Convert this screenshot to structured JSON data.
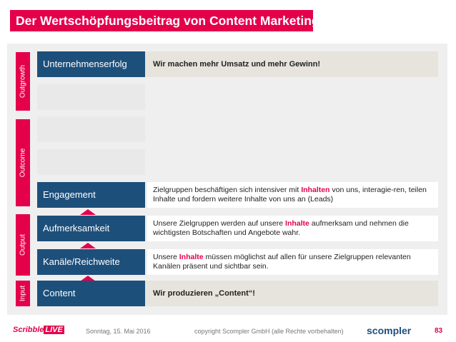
{
  "title": "Der Wertschöpfungsbeitrag von Content Marketing",
  "sections": {
    "outgrowth": "Outgrowth",
    "outcome": "Outcome",
    "output": "Output",
    "input": "Input"
  },
  "rows": {
    "unternehmenserfolg": {
      "label": "Unternehmenserfolg",
      "desc": "Wir machen mehr Umsatz und mehr Gewinn!"
    },
    "engagement": {
      "label": "Engagement",
      "desc_a": "Zielgruppen beschäftigen sich intensiver mit ",
      "desc_hl": "Inhalten",
      "desc_b": " von uns, interagie-ren, teilen Inhalte und fordern weitere Inhalte von uns an (Leads)"
    },
    "aufmerksamkeit": {
      "label": "Aufmerksamkeit",
      "desc_a": "Unsere Zielgruppen werden auf unsere ",
      "desc_hl": "Inhalte",
      "desc_b": " aufmerksam und nehmen die wichtigsten Botschaften und Angebote wahr."
    },
    "kanaele": {
      "label": "Kanäle/Reichweite",
      "desc_a": "Unsere ",
      "desc_hl": "Inhalte",
      "desc_b": " müssen möglichst auf allen für unsere Zielgruppen relevanten Kanälen präsent und sichtbar sein."
    },
    "content": {
      "label": "Content",
      "desc": "Wir produzieren „Content“!"
    }
  },
  "footer": {
    "date": "Sonntag, 15. Mai 2016",
    "copyright": "copyright Scompler GmbH (alle Rechte vorbehalten)",
    "page": "83",
    "logo_left_a": "Scribble",
    "logo_left_b": "LIVE",
    "logo_right": "scompler"
  },
  "colors": {
    "accent": "#e4004b",
    "label_bg": "#1d4f7b",
    "row_bg": "#e6e4dc",
    "panel_bg": "#efefef"
  }
}
